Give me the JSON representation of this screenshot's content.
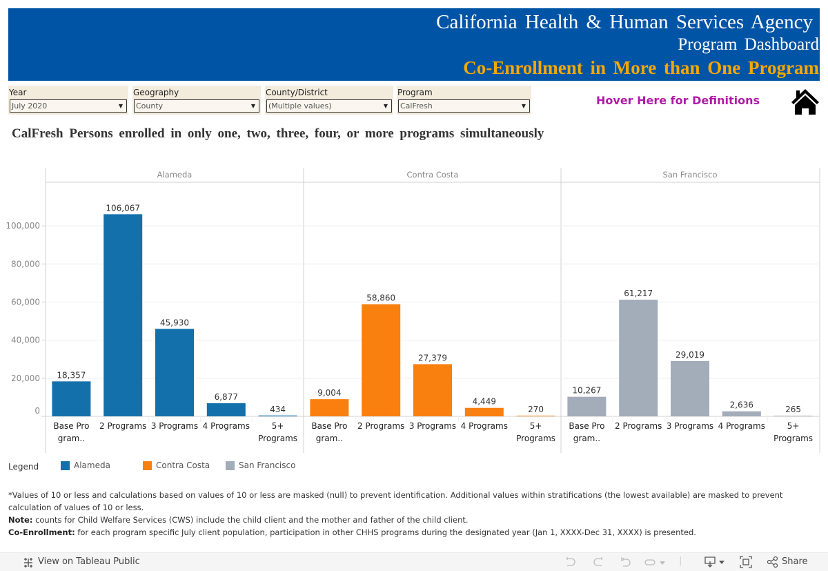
{
  "header": {
    "line1": "California Health & Human Services Agency",
    "line2": "Program Dashboard",
    "line3": "Co-Enrollment in More than One Program",
    "banner_color": "#0054a5",
    "accent_color": "#f7a800"
  },
  "filters": [
    {
      "label": "Year",
      "value": "July 2020"
    },
    {
      "label": "Geography",
      "value": "County"
    },
    {
      "label": "County/District",
      "value": "(Multiple values)"
    },
    {
      "label": "Program",
      "value": "CalFresh"
    }
  ],
  "hover_definitions": "Hover Here for Definitions",
  "home_icon": "home-icon",
  "chart_title": "CalFresh Persons enrolled in only one, two, three, four, or more programs simultaneously",
  "chart_data": {
    "type": "bar",
    "title": "CalFresh Persons enrolled in only one, two, three, four, or more programs simultaneously",
    "xlabel": "",
    "ylabel": "",
    "ylim": [
      0,
      120000
    ],
    "yticks": [
      0,
      20000,
      40000,
      60000,
      80000,
      100000
    ],
    "ytick_labels": [
      "0",
      "20,000",
      "40,000",
      "60,000",
      "80,000",
      "100,000"
    ],
    "grid": true,
    "categories": [
      "Base Program..",
      "2 Programs",
      "3 Programs",
      "4 Programs",
      "5+ Programs"
    ],
    "category_lines": [
      [
        "Base Pro",
        "gram.."
      ],
      [
        "2 Programs"
      ],
      [
        "3 Programs"
      ],
      [
        "4 Programs"
      ],
      [
        "5+",
        "Programs"
      ]
    ],
    "panes": [
      {
        "name": "Alameda",
        "color": "#1470aa",
        "values": [
          18357,
          106067,
          45930,
          6877,
          434
        ],
        "labels": [
          "18,357",
          "106,067",
          "45,930",
          "6,877",
          "434"
        ]
      },
      {
        "name": "Contra Costa",
        "color": "#f97f0f",
        "values": [
          9004,
          58860,
          27379,
          4449,
          270
        ],
        "labels": [
          "9,004",
          "58,860",
          "27,379",
          "4,449",
          "270"
        ]
      },
      {
        "name": "San Francisco",
        "color": "#a3acb9",
        "values": [
          10267,
          61217,
          29019,
          2636,
          265
        ],
        "labels": [
          "10,267",
          "61,217",
          "29,019",
          "2,636",
          "265"
        ]
      }
    ],
    "legend": {
      "title": "Legend",
      "placement": "bottom-left",
      "entries": [
        {
          "name": "Alameda",
          "color": "#1470aa"
        },
        {
          "name": "Contra Costa",
          "color": "#f97f0f"
        },
        {
          "name": "San Francisco",
          "color": "#a3acb9"
        }
      ]
    }
  },
  "notes": {
    "masked": "*Values of 10 or less and calculations based on values of 10 or less are masked (null) to prevent identification. Additional values within stratifications (the lowest available) are masked to prevent calculation of values of 10 or less.",
    "note_label": "Note:",
    "note_text": " counts for Child Welfare Services (CWS) include the child client and the mother and father of the child client.",
    "coenroll_label": "Co-Enrollment:",
    "coenroll_text": " for each program specific July client population, participation in other CHHS programs during the designated year (Jan 1, XXXX-Dec 31, XXXX) is presented."
  },
  "toolbar": {
    "view_on_tableau": "View on Tableau Public",
    "share": "Share",
    "icons": [
      "undo-icon",
      "redo-icon",
      "revert-icon",
      "refresh-icon",
      "download-icon",
      "fullscreen-icon",
      "share-icon"
    ]
  }
}
